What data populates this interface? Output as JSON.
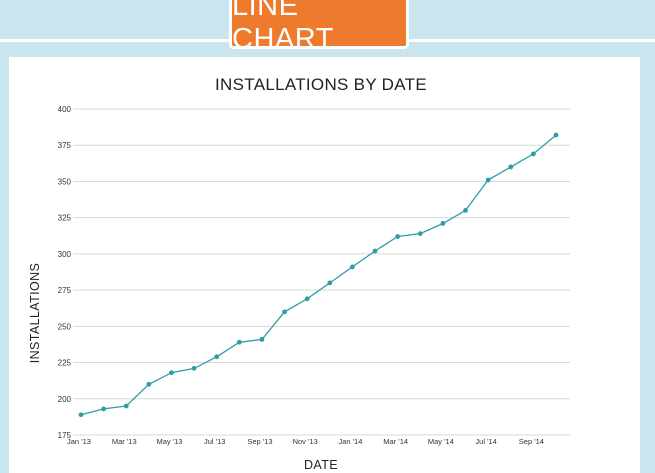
{
  "badge": {
    "label": "LINE CHART"
  },
  "colors": {
    "background": "#c9e6ee",
    "badge": "#ee7a2e",
    "line": "#2c9fa6",
    "grid": "#d9d9d9"
  },
  "chart_data": {
    "type": "line",
    "title": "INSTALLATIONS BY DATE",
    "xlabel": "DATE",
    "ylabel": "INSTALLATIONS",
    "ylim": [
      175,
      400
    ],
    "yticks": [
      175,
      200,
      225,
      250,
      275,
      300,
      325,
      350,
      375,
      400
    ],
    "grid": true,
    "x": [
      "2013-01",
      "2013-02",
      "2013-03",
      "2013-04",
      "2013-05",
      "2013-06",
      "2013-07",
      "2013-08",
      "2013-09",
      "2013-10",
      "2013-11",
      "2013-12",
      "2014-01",
      "2014-02",
      "2014-03",
      "2014-04",
      "2014-05",
      "2014-06",
      "2014-07",
      "2014-08",
      "2014-09",
      "2014-10"
    ],
    "xtick_labels": [
      "Jan '13",
      "Mar '13",
      "May '13",
      "Jul '13",
      "Sep '13",
      "Nov '13",
      "Jan '14",
      "Mar '14",
      "May '14",
      "Jul '14",
      "Sep '14"
    ],
    "series": [
      {
        "values": [
          189,
          193,
          195,
          210,
          218,
          221,
          229,
          239,
          241,
          260,
          269,
          280,
          291,
          302,
          312,
          314,
          321,
          330,
          351,
          360,
          369,
          382
        ]
      }
    ]
  }
}
